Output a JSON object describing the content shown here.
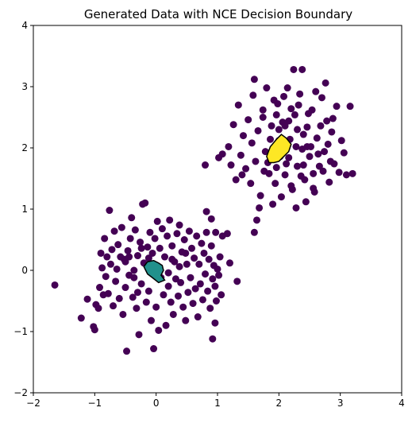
{
  "chart_data": {
    "type": "scatter",
    "title": "Generated Data with NCE Decision Boundary",
    "xlabel": "",
    "ylabel": "",
    "xlim": [
      -2,
      4
    ],
    "ylim": [
      -2,
      4
    ],
    "x_ticks": [
      "−2",
      "−1",
      "0",
      "1",
      "2",
      "3",
      "4"
    ],
    "y_ticks": [
      "−2",
      "−1",
      "0",
      "1",
      "2",
      "3",
      "4"
    ],
    "x_tick_values": [
      -2,
      -1,
      0,
      1,
      2,
      3,
      4
    ],
    "y_tick_values": [
      -2,
      -1,
      0,
      1,
      2,
      3,
      4
    ],
    "grid": false,
    "legend": "none",
    "colors": {
      "points": "#440154",
      "region_cluster_1": "#21918c",
      "region_cluster_2": "#fde725",
      "boundary": "#000000",
      "frame": "#000000",
      "background": "#ffffff"
    },
    "series": [
      {
        "points": [
          [
            -1.65,
            -0.24
          ],
          [
            -1.22,
            -0.78
          ],
          [
            -1.12,
            -0.47
          ],
          [
            -1.02,
            -0.92
          ],
          [
            -1.0,
            -0.97
          ],
          [
            -0.98,
            -0.56
          ],
          [
            -0.94,
            -0.62
          ],
          [
            -0.92,
            -0.28
          ],
          [
            -0.9,
            0.28
          ],
          [
            -0.88,
            0.04
          ],
          [
            -0.86,
            -0.4
          ],
          [
            -0.84,
            0.52
          ],
          [
            -0.82,
            -0.1
          ],
          [
            -0.8,
            0.22
          ],
          [
            -0.78,
            -0.38
          ],
          [
            -0.76,
            0.98
          ],
          [
            -0.74,
            0.1
          ],
          [
            -0.72,
            0.34
          ],
          [
            -0.7,
            -0.58
          ],
          [
            -0.68,
            0.64
          ],
          [
            -0.66,
            -0.18
          ],
          [
            -0.64,
            0.02
          ],
          [
            -0.62,
            0.42
          ],
          [
            -0.6,
            -0.46
          ],
          [
            -0.58,
            0.22
          ],
          [
            -0.56,
            0.7
          ],
          [
            -0.54,
            -0.72
          ],
          [
            -0.52,
            0.18
          ],
          [
            -0.5,
            -0.28
          ],
          [
            -0.48,
            -1.32
          ],
          [
            -0.46,
            0.32
          ],
          [
            -0.44,
            -0.08
          ],
          [
            -0.42,
            0.52
          ],
          [
            -0.4,
            0.86
          ],
          [
            -0.38,
            -0.44
          ],
          [
            -0.36,
            0.0
          ],
          [
            -0.34,
            0.66
          ],
          [
            -0.32,
            -0.62
          ],
          [
            -0.3,
            0.24
          ],
          [
            -0.28,
            -1.05
          ],
          [
            -0.26,
            0.46
          ],
          [
            -0.24,
            -0.22
          ],
          [
            -0.22,
            1.08
          ],
          [
            -0.2,
            0.12
          ],
          [
            -0.18,
            1.1
          ],
          [
            -0.16,
            -0.52
          ],
          [
            -0.14,
            0.38
          ],
          [
            -0.12,
            -0.34
          ],
          [
            -0.1,
            0.62
          ],
          [
            -0.08,
            -0.82
          ],
          [
            -0.06,
            0.28
          ],
          [
            -0.04,
            -1.28
          ],
          [
            -0.02,
            0.52
          ],
          [
            0.0,
            -0.6
          ],
          [
            0.02,
            0.8
          ],
          [
            0.04,
            -0.98
          ],
          [
            0.06,
            0.36
          ],
          [
            0.08,
            -0.12
          ],
          [
            0.1,
            0.68
          ],
          [
            0.12,
            -0.4
          ],
          [
            0.14,
            0.22
          ],
          [
            0.16,
            -0.9
          ],
          [
            0.18,
            0.56
          ],
          [
            0.2,
            -0.26
          ],
          [
            0.22,
            0.82
          ],
          [
            0.24,
            -0.52
          ],
          [
            0.26,
            0.4
          ],
          [
            0.28,
            -0.72
          ],
          [
            0.3,
            0.14
          ],
          [
            0.32,
            -0.14
          ],
          [
            0.34,
            0.6
          ],
          [
            0.36,
            -0.42
          ],
          [
            0.38,
            0.74
          ],
          [
            0.4,
            -0.2
          ],
          [
            0.42,
            0.3
          ],
          [
            0.44,
            -0.6
          ],
          [
            0.46,
            0.5
          ],
          [
            0.48,
            -0.82
          ],
          [
            0.5,
            0.1
          ],
          [
            0.52,
            -0.36
          ],
          [
            0.54,
            0.64
          ],
          [
            0.56,
            -0.12
          ],
          [
            0.58,
            0.36
          ],
          [
            0.6,
            -0.54
          ],
          [
            0.62,
            0.2
          ],
          [
            0.64,
            -0.3
          ],
          [
            0.66,
            0.56
          ],
          [
            0.68,
            -0.76
          ],
          [
            0.7,
            0.1
          ],
          [
            0.72,
            -0.22
          ],
          [
            0.74,
            0.44
          ],
          [
            0.76,
            -0.48
          ],
          [
            0.78,
            0.28
          ],
          [
            0.8,
            -0.06
          ],
          [
            0.82,
            0.62
          ],
          [
            0.84,
            -0.34
          ],
          [
            0.86,
            0.18
          ],
          [
            0.88,
            -0.62
          ],
          [
            0.9,
            0.4
          ],
          [
            0.92,
            -0.14
          ],
          [
            0.94,
            0.08
          ],
          [
            0.96,
            -0.26
          ],
          [
            0.98,
            -0.5
          ],
          [
            1.0,
            0.02
          ],
          [
            1.02,
            -0.08
          ],
          [
            1.04,
            0.22
          ],
          [
            1.06,
            -0.4
          ],
          [
            1.08,
            0.56
          ],
          [
            0.92,
            -1.12
          ],
          [
            0.96,
            -0.86
          ],
          [
            0.9,
            0.84
          ],
          [
            0.97,
            0.62
          ],
          [
            1.2,
            0.12
          ],
          [
            1.32,
            -0.18
          ],
          [
            1.16,
            0.6
          ],
          [
            0.82,
            0.96
          ],
          [
            -0.5,
            0.14
          ],
          [
            -0.36,
            -0.12
          ],
          [
            -0.24,
            0.36
          ],
          [
            -0.12,
            0.2
          ],
          [
            0.26,
            0.18
          ],
          [
            0.38,
            0.06
          ],
          [
            -0.3,
            -0.36
          ],
          [
            0.2,
            -0.04
          ],
          [
            0.48,
            0.28
          ],
          [
            -0.44,
            0.22
          ],
          [
            1.82,
            1.76
          ],
          [
            1.88,
            2.36
          ],
          [
            1.94,
            1.42
          ],
          [
            1.98,
            2.72
          ],
          [
            2.02,
            1.86
          ],
          [
            2.06,
            2.42
          ],
          [
            2.1,
            1.56
          ],
          [
            2.14,
            2.98
          ],
          [
            2.18,
            2.14
          ],
          [
            2.22,
            1.32
          ],
          [
            2.26,
            2.54
          ],
          [
            2.3,
            1.7
          ],
          [
            2.34,
            2.88
          ],
          [
            2.38,
            1.98
          ],
          [
            2.42,
            1.48
          ],
          [
            2.46,
            2.34
          ],
          [
            2.5,
            1.86
          ],
          [
            2.54,
            2.62
          ],
          [
            2.58,
            1.28
          ],
          [
            2.62,
            2.16
          ],
          [
            2.66,
            1.7
          ],
          [
            2.7,
            2.82
          ],
          [
            2.74,
            1.94
          ],
          [
            2.78,
            2.44
          ],
          [
            2.82,
            1.44
          ],
          [
            2.86,
            2.26
          ],
          [
            2.9,
            1.74
          ],
          [
            2.94,
            2.68
          ],
          [
            2.98,
            1.6
          ],
          [
            3.02,
            2.12
          ],
          [
            3.06,
            1.92
          ],
          [
            3.1,
            1.56
          ],
          [
            3.16,
            2.68
          ],
          [
            3.2,
            1.58
          ],
          [
            1.38,
            1.88
          ],
          [
            1.42,
            2.2
          ],
          [
            1.46,
            1.66
          ],
          [
            1.5,
            2.46
          ],
          [
            1.54,
            1.42
          ],
          [
            1.58,
            2.86
          ],
          [
            1.62,
            1.78
          ],
          [
            1.66,
            2.28
          ],
          [
            1.7,
            1.22
          ],
          [
            1.74,
            2.62
          ],
          [
            1.78,
            1.94
          ],
          [
            1.8,
            2.98
          ],
          [
            1.84,
            1.58
          ],
          [
            1.86,
            2.14
          ],
          [
            1.9,
            1.08
          ],
          [
            1.92,
            2.78
          ],
          [
            1.96,
            1.68
          ],
          [
            2.0,
            2.3
          ],
          [
            2.04,
            1.2
          ],
          [
            2.08,
            2.84
          ],
          [
            2.12,
            1.74
          ],
          [
            2.16,
            2.44
          ],
          [
            2.2,
            1.38
          ],
          [
            2.24,
            3.28
          ],
          [
            2.28,
            2.02
          ],
          [
            2.32,
            2.7
          ],
          [
            2.36,
            1.54
          ],
          [
            2.4,
            2.22
          ],
          [
            2.44,
            1.12
          ],
          [
            2.48,
            2.56
          ],
          [
            2.52,
            2.02
          ],
          [
            2.56,
            1.34
          ],
          [
            2.6,
            2.92
          ],
          [
            2.64,
            1.9
          ],
          [
            2.68,
            2.36
          ],
          [
            2.72,
            1.62
          ],
          [
            2.76,
            3.06
          ],
          [
            2.8,
            2.06
          ],
          [
            2.84,
            1.78
          ],
          [
            2.88,
            2.48
          ],
          [
            1.3,
            1.48
          ],
          [
            1.26,
            2.38
          ],
          [
            1.22,
            1.72
          ],
          [
            1.18,
            2.02
          ],
          [
            1.34,
            2.7
          ],
          [
            1.6,
            3.12
          ],
          [
            1.68,
            1.02
          ],
          [
            2.38,
            3.28
          ],
          [
            2.28,
            1.02
          ],
          [
            1.64,
            0.82
          ],
          [
            1.6,
            0.62
          ],
          [
            1.08,
            1.9
          ],
          [
            1.02,
            1.84
          ],
          [
            0.8,
            1.72
          ],
          [
            1.4,
            1.56
          ],
          [
            1.56,
            2.08
          ],
          [
            1.74,
            2.5
          ],
          [
            1.9,
            1.96
          ],
          [
            2.0,
            2.12
          ],
          [
            2.16,
            1.84
          ],
          [
            2.3,
            2.3
          ],
          [
            2.46,
            2.02
          ],
          [
            1.96,
            2.54
          ],
          [
            2.2,
            2.64
          ],
          [
            2.4,
            1.72
          ],
          [
            2.56,
            1.58
          ],
          [
            1.76,
            1.62
          ],
          [
            2.1,
            2.36
          ]
        ]
      }
    ],
    "contour_region_1": [
      [
        -0.2,
        0.06
      ],
      [
        -0.14,
        0.14
      ],
      [
        -0.04,
        0.16
      ],
      [
        0.04,
        0.12
      ],
      [
        0.1,
        0.08
      ],
      [
        0.12,
        0.0
      ],
      [
        0.08,
        -0.08
      ],
      [
        0.14,
        -0.16
      ],
      [
        0.04,
        -0.2
      ],
      [
        -0.06,
        -0.12
      ],
      [
        -0.14,
        -0.06
      ]
    ],
    "contour_region_2": [
      [
        1.8,
        1.86
      ],
      [
        1.86,
        2.02
      ],
      [
        1.96,
        2.14
      ],
      [
        2.04,
        2.22
      ],
      [
        2.12,
        2.16
      ],
      [
        2.2,
        2.06
      ],
      [
        2.16,
        1.94
      ],
      [
        2.06,
        1.84
      ],
      [
        2.0,
        1.78
      ],
      [
        1.92,
        1.76
      ],
      [
        1.84,
        1.76
      ]
    ]
  }
}
